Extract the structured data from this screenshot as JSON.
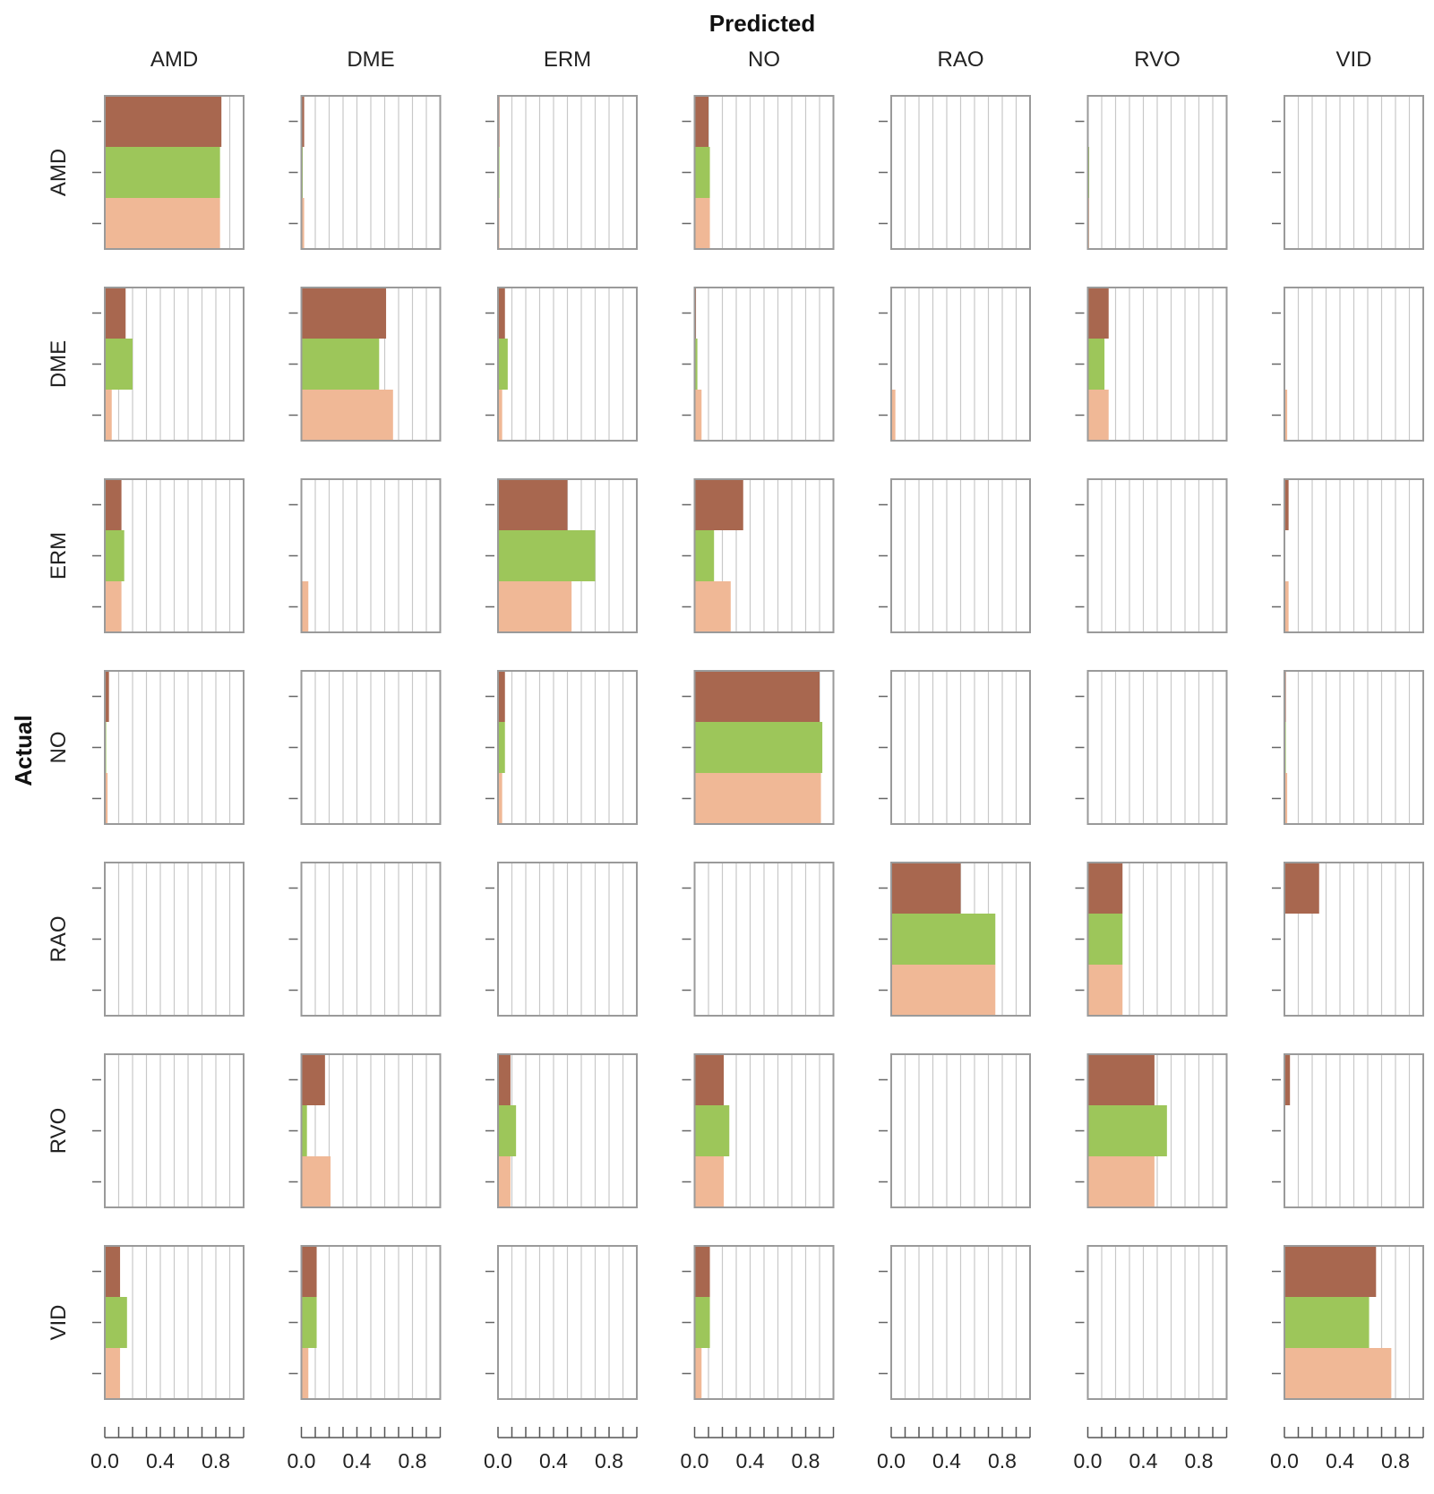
{
  "chart_data": {
    "type": "bar",
    "title": "Predicted",
    "ylabel": "Actual",
    "columns": [
      "AMD",
      "DME",
      "ERM",
      "NO",
      "RAO",
      "RVO",
      "VID"
    ],
    "rows": [
      "AMD",
      "DME",
      "ERM",
      "NO",
      "RAO",
      "RVO",
      "VID"
    ],
    "xlim": [
      0,
      1
    ],
    "x_ticks": [
      "0.0",
      "0.4",
      "0.8"
    ],
    "series_colors": [
      "#a8674f",
      "#9dc65a",
      "#f0b896"
    ],
    "cells": [
      [
        [
          0.84,
          0.83,
          0.83
        ],
        [
          0.02,
          0.01,
          0.02
        ],
        [
          0.01,
          0.01,
          0.01
        ],
        [
          0.1,
          0.11,
          0.11
        ],
        [
          0,
          0,
          0
        ],
        [
          0,
          0.01,
          0.01
        ],
        [
          0,
          0,
          0
        ]
      ],
      [
        [
          0.15,
          0.2,
          0.05
        ],
        [
          0.61,
          0.56,
          0.66
        ],
        [
          0.05,
          0.07,
          0.03
        ],
        [
          0.01,
          0.02,
          0.05
        ],
        [
          0,
          0,
          0.03
        ],
        [
          0.15,
          0.12,
          0.15
        ],
        [
          0,
          0,
          0.02
        ]
      ],
      [
        [
          0.12,
          0.14,
          0.12
        ],
        [
          0,
          0,
          0.05
        ],
        [
          0.5,
          0.7,
          0.53
        ],
        [
          0.35,
          0.14,
          0.26
        ],
        [
          0,
          0,
          0
        ],
        [
          0,
          0,
          0
        ],
        [
          0.03,
          0,
          0.03
        ]
      ],
      [
        [
          0.03,
          0.01,
          0.02
        ],
        [
          0,
          0,
          0
        ],
        [
          0.05,
          0.05,
          0.03
        ],
        [
          0.9,
          0.92,
          0.91
        ],
        [
          0,
          0,
          0
        ],
        [
          0,
          0,
          0
        ],
        [
          0.01,
          0.01,
          0.02
        ]
      ],
      [
        [
          0,
          0,
          0
        ],
        [
          0,
          0,
          0
        ],
        [
          0,
          0,
          0
        ],
        [
          0,
          0,
          0
        ],
        [
          0.5,
          0.75,
          0.75
        ],
        [
          0.25,
          0.25,
          0.25
        ],
        [
          0.25,
          0,
          0
        ]
      ],
      [
        [
          0,
          0,
          0
        ],
        [
          0.17,
          0.04,
          0.21
        ],
        [
          0.09,
          0.13,
          0.09
        ],
        [
          0.21,
          0.25,
          0.21
        ],
        [
          0,
          0,
          0
        ],
        [
          0.48,
          0.57,
          0.48
        ],
        [
          0.04,
          0,
          0
        ]
      ],
      [
        [
          0.11,
          0.16,
          0.11
        ],
        [
          0.11,
          0.11,
          0.05
        ],
        [
          0,
          0,
          0
        ],
        [
          0.11,
          0.11,
          0.05
        ],
        [
          0,
          0,
          0
        ],
        [
          0,
          0,
          0
        ],
        [
          0.66,
          0.61,
          0.77
        ]
      ]
    ]
  }
}
